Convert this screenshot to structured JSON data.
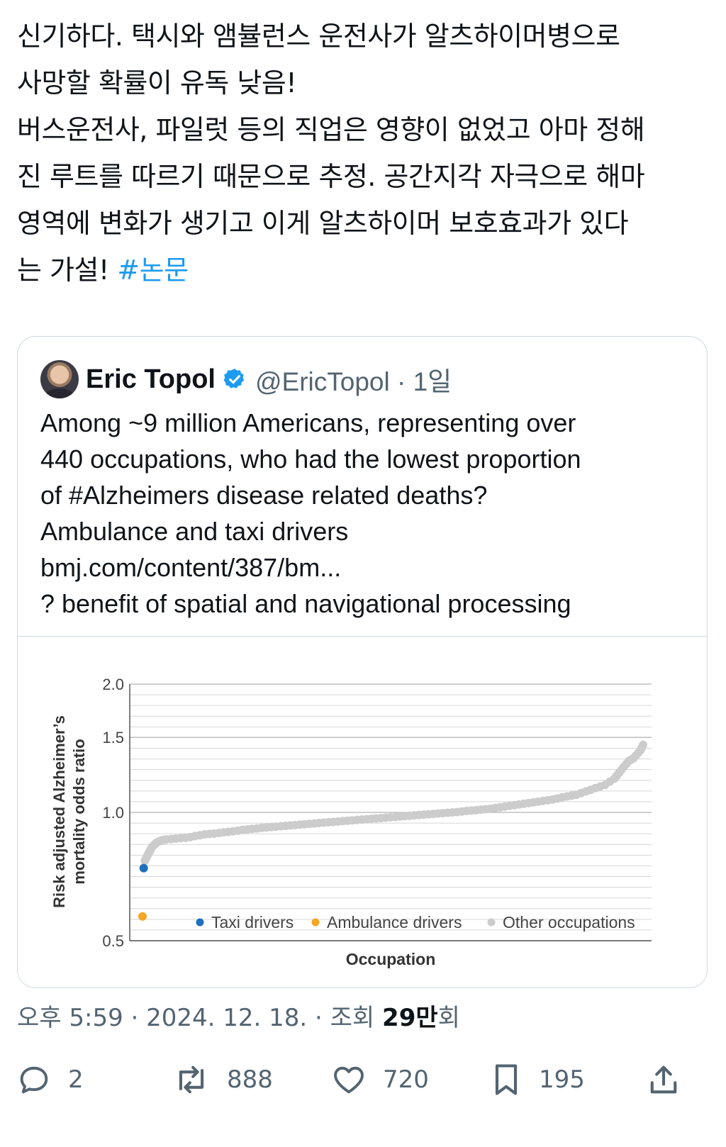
{
  "tweet": {
    "text": "신기하다. 택시와 앰뷸런스 운전사가 알츠하이머병으로\n사망할 확률이 유독 낮음!\n버스운전사, 파일럿 등의 직업은 영향이 없었고 아마 정해\n진 루트를 따르기 때문으로 추정. 공간지각 자극으로 해마\n영역에 변화가 생기고 이게 알츠하이머 보호효과가 있다\n는 가설! ",
    "hashtag": "#논문"
  },
  "quote": {
    "name": "Eric Topol",
    "handle": "@EricTopol · 1일",
    "text": "Among ~9 million Americans, representing over\n440 occupations, who had the lowest proportion\nof #Alzheimers disease related deaths?\nAmbulance and taxi drivers\nbmj.com/content/387/bm...\n? benefit of spatial and navigational processing"
  },
  "chart_data": {
    "type": "scatter",
    "title": "",
    "xlabel": "Occupation",
    "ylabel": "Risk adjusted Alzheimer’s mortality odds ratio",
    "y_scale": "log",
    "ylim": [
      0.5,
      2.0
    ],
    "y_ticks": [
      "2.0",
      "1.5",
      "1.0",
      "0.5"
    ],
    "grid": true,
    "legend_position": "bottom-right",
    "series": [
      {
        "name": "Taxi drivers",
        "color": "#1f6fbf",
        "x": [
          1
        ],
        "y": [
          0.74
        ]
      },
      {
        "name": "Ambulance drivers",
        "color": "#f5a623",
        "x": [
          0
        ],
        "y": [
          0.57
        ]
      },
      {
        "name": "Other occupations",
        "color": "#cccccc",
        "x": [
          2,
          3,
          4,
          5,
          6,
          7,
          8,
          9,
          10,
          11,
          12,
          14,
          16,
          18,
          20,
          24,
          28,
          32,
          36,
          40,
          44,
          48,
          52,
          56,
          60,
          64,
          68,
          72,
          76,
          80,
          84,
          88,
          92,
          96,
          100,
          104,
          108,
          112,
          116,
          120,
          124,
          128,
          132,
          136,
          140,
          144,
          148,
          152,
          156,
          160,
          164,
          168,
          172,
          176,
          180,
          184,
          188,
          192,
          196,
          200,
          204,
          208,
          212,
          216,
          220,
          224,
          228,
          232,
          236,
          240,
          244,
          248,
          252,
          256,
          260,
          264,
          268,
          272,
          276,
          280,
          284,
          288,
          292,
          296,
          300,
          304,
          308,
          312,
          316,
          320,
          324,
          328,
          332,
          336,
          340,
          344,
          348,
          352,
          356,
          360,
          364,
          368,
          372,
          376,
          380,
          384,
          388,
          392,
          396,
          398,
          400,
          402,
          404,
          406,
          408,
          410,
          412,
          414,
          416,
          418,
          419,
          420
        ],
        "y": [
          0.77,
          0.78,
          0.79,
          0.8,
          0.81,
          0.82,
          0.83,
          0.835,
          0.84,
          0.845,
          0.85,
          0.855,
          0.86,
          0.862,
          0.864,
          0.866,
          0.868,
          0.87,
          0.872,
          0.875,
          0.88,
          0.884,
          0.888,
          0.89,
          0.892,
          0.895,
          0.898,
          0.9,
          0.903,
          0.906,
          0.91,
          0.912,
          0.915,
          0.917,
          0.92,
          0.922,
          0.924,
          0.926,
          0.928,
          0.93,
          0.932,
          0.934,
          0.936,
          0.938,
          0.94,
          0.942,
          0.944,
          0.946,
          0.948,
          0.95,
          0.952,
          0.954,
          0.956,
          0.958,
          0.96,
          0.962,
          0.964,
          0.966,
          0.968,
          0.97,
          0.972,
          0.974,
          0.976,
          0.978,
          0.98,
          0.982,
          0.984,
          0.986,
          0.988,
          0.99,
          0.992,
          0.994,
          0.996,
          0.998,
          1.0,
          1.002,
          1.005,
          1.008,
          1.01,
          1.012,
          1.015,
          1.018,
          1.02,
          1.024,
          1.028,
          1.032,
          1.036,
          1.04,
          1.044,
          1.048,
          1.052,
          1.056,
          1.06,
          1.064,
          1.068,
          1.072,
          1.078,
          1.085,
          1.09,
          1.095,
          1.1,
          1.11,
          1.12,
          1.13,
          1.14,
          1.15,
          1.16,
          1.18,
          1.2,
          1.22,
          1.24,
          1.26,
          1.28,
          1.3,
          1.32,
          1.33,
          1.34,
          1.36,
          1.38,
          1.4,
          1.42,
          1.44
        ]
      }
    ],
    "xlim": [
      0,
      420
    ]
  },
  "footer": {
    "time": "오후 5:59 · 2024. 12. 18. · 조회 ",
    "views_count": "29만",
    "views_suffix": "회"
  },
  "actions": {
    "replies": "2",
    "retweets": "888",
    "likes": "720",
    "bookmarks": "195"
  },
  "icons": {
    "verified": "verified-badge-icon",
    "reply": "reply-icon",
    "retweet": "retweet-icon",
    "like": "heart-icon",
    "bookmark": "bookmark-icon",
    "share": "share-icon"
  },
  "colors": {
    "link": "#1d9bf0",
    "muted": "#536471",
    "border": "#cfd9de"
  }
}
